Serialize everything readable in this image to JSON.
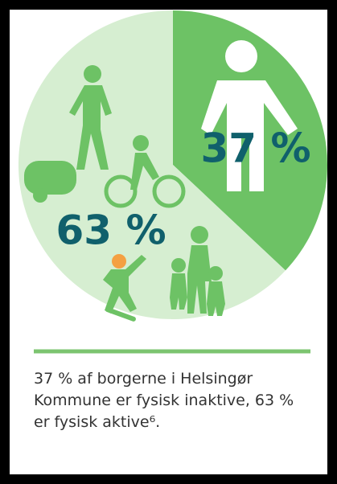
{
  "chart_data": {
    "type": "pie",
    "values": [
      37,
      63
    ],
    "value_labels": [
      "37 %",
      "63 %"
    ],
    "colors": [
      "#6dc265",
      "#d6eed1"
    ],
    "caption": "37 % af borgerne i Helsingør Kommune er fysisk inaktive, 63 % er fysisk aktive⁶."
  }
}
